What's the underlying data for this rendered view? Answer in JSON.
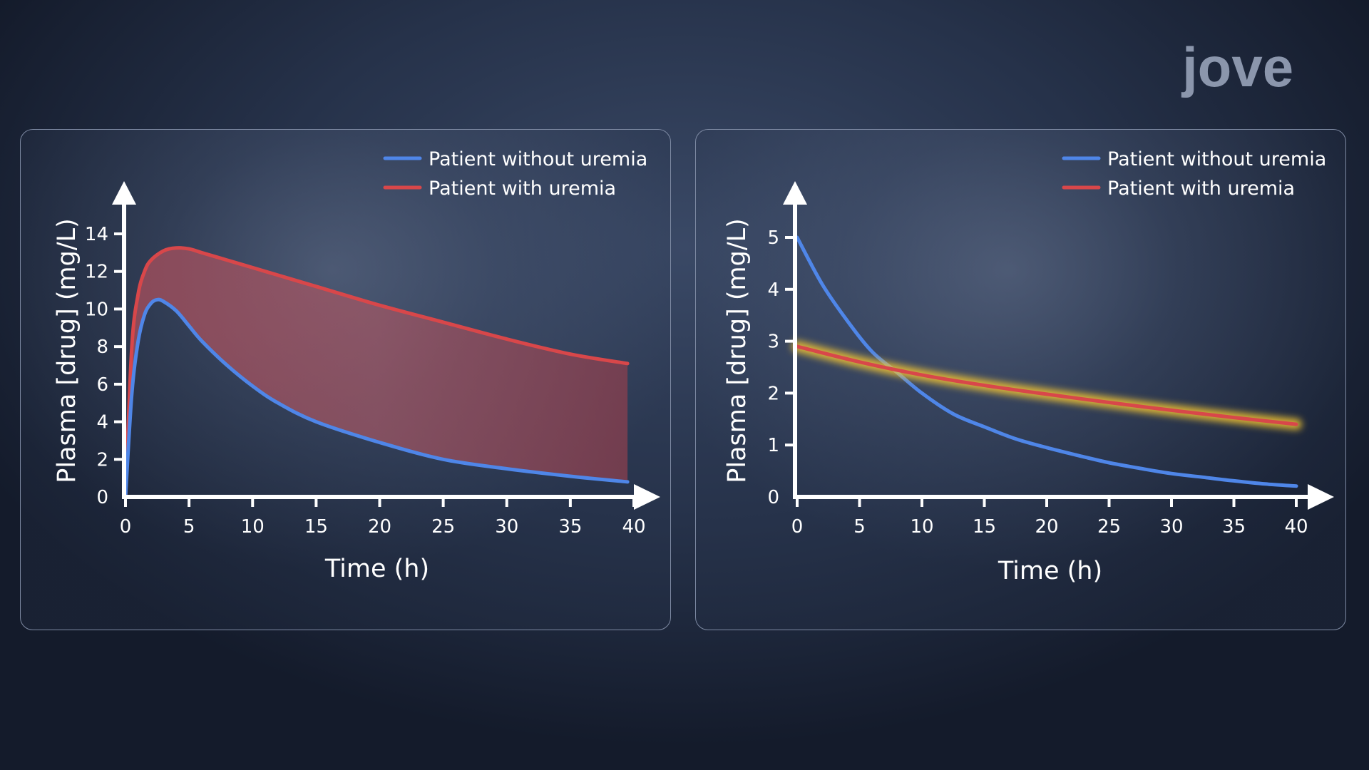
{
  "logo": {
    "text": "jove"
  },
  "colors": {
    "blue_series": "#4f86e8",
    "red_series": "#d8474a",
    "glow": "#f5c631",
    "fill_band": "#a04a56",
    "axis": "#ffffff"
  },
  "chart_data": [
    {
      "type": "line",
      "xlabel": "Time (h)",
      "ylabel": "Plasma [drug] (mg/L)",
      "xlim": [
        0,
        40
      ],
      "ylim": [
        0,
        14
      ],
      "x_ticks": [
        "0",
        "5",
        "10",
        "15",
        "20",
        "25",
        "30",
        "35",
        "40"
      ],
      "y_ticks": [
        "0",
        "2",
        "4",
        "6",
        "8",
        "10",
        "12",
        "14"
      ],
      "grid": false,
      "legend_position": "top-right",
      "shaded_region_between_series": true,
      "series": [
        {
          "name": "Patient without uremia",
          "color": "#4f86e8",
          "x": [
            0,
            0.5,
            1,
            1.5,
            2,
            2.5,
            3,
            4,
            5,
            6,
            8,
            10,
            12,
            15,
            20,
            25,
            30,
            35,
            39.5
          ],
          "y": [
            0,
            5.5,
            8.3,
            9.7,
            10.3,
            10.5,
            10.4,
            9.9,
            9.1,
            8.3,
            7.0,
            5.9,
            5.0,
            4.0,
            2.9,
            2.0,
            1.5,
            1.1,
            0.8
          ]
        },
        {
          "name": "Patient with uremia",
          "color": "#d8474a",
          "x": [
            0,
            0.5,
            1,
            1.5,
            2,
            3,
            4,
            5,
            6,
            8,
            10,
            15,
            20,
            25,
            30,
            35,
            39.5
          ],
          "y": [
            0,
            8.0,
            10.8,
            12.0,
            12.6,
            13.1,
            13.25,
            13.2,
            13.0,
            12.6,
            12.2,
            11.2,
            10.2,
            9.3,
            8.4,
            7.6,
            7.1
          ]
        }
      ]
    },
    {
      "type": "line",
      "xlabel": "Time (h)",
      "ylabel": "Plasma [drug] (mg/L)",
      "xlim": [
        0,
        40
      ],
      "ylim": [
        0,
        5
      ],
      "x_ticks": [
        "0",
        "5",
        "10",
        "15",
        "20",
        "25",
        "30",
        "35",
        "40"
      ],
      "y_ticks": [
        "0",
        "1",
        "2",
        "3",
        "4",
        "5"
      ],
      "grid": false,
      "legend_position": "top-right",
      "highlighted_series": "Patient with uremia",
      "series": [
        {
          "name": "Patient without uremia",
          "color": "#4f86e8",
          "x": [
            0,
            2,
            4,
            6,
            8,
            10,
            12.5,
            15,
            17.5,
            20,
            22.5,
            25,
            27.5,
            30,
            32.5,
            35,
            37.5,
            40
          ],
          "y": [
            5.0,
            4.1,
            3.4,
            2.8,
            2.4,
            2.0,
            1.6,
            1.35,
            1.12,
            0.95,
            0.8,
            0.66,
            0.55,
            0.45,
            0.38,
            0.31,
            0.25,
            0.21
          ]
        },
        {
          "name": "Patient with uremia",
          "color": "#d8474a",
          "x": [
            0,
            5,
            10,
            15,
            20,
            25,
            30,
            35,
            40
          ],
          "y": [
            2.9,
            2.6,
            2.35,
            2.15,
            1.98,
            1.82,
            1.67,
            1.53,
            1.4
          ]
        }
      ]
    }
  ]
}
